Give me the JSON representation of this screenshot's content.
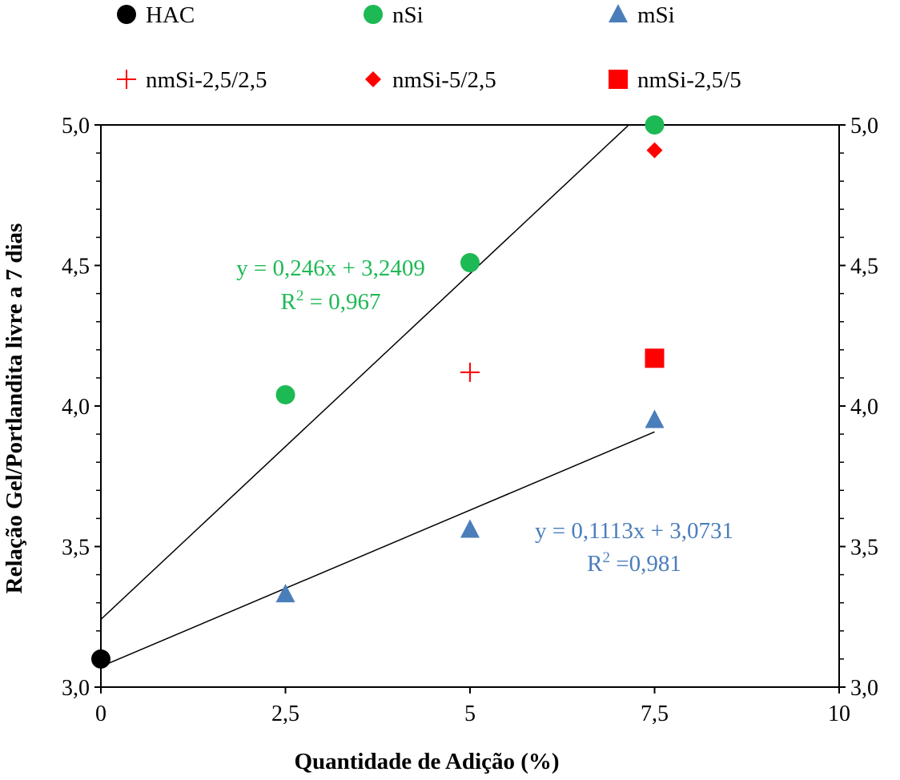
{
  "chart_data": {
    "type": "scatter",
    "title": "",
    "xlabel": "Quantidade de Adição (%)",
    "ylabel": "Relação Gel/Portlandita livre a 7 dias",
    "xlim": [
      0,
      10
    ],
    "ylim": [
      3.0,
      5.0
    ],
    "x_ticks": [
      0,
      2.5,
      5,
      7.5,
      10
    ],
    "x_tick_labels": [
      "0",
      "2,5",
      "5",
      "7,5",
      "10"
    ],
    "y_ticks": [
      3.0,
      3.5,
      4.0,
      4.5,
      5.0
    ],
    "y_tick_labels": [
      "3,0",
      "3,5",
      "4,0",
      "4,5",
      "5,0"
    ],
    "y2_tick_labels": [
      "3,0",
      "3,5",
      "4,0",
      "4,5",
      "5,0"
    ],
    "grid": false,
    "legend_position": "top",
    "series": [
      {
        "name": "HAC",
        "marker": "circle",
        "color": "#000000",
        "points": [
          [
            0,
            3.1
          ]
        ]
      },
      {
        "name": "nSi",
        "marker": "circle",
        "color": "#1db954",
        "points": [
          [
            2.5,
            4.04
          ],
          [
            5,
            4.51
          ],
          [
            7.5,
            5.0
          ]
        ]
      },
      {
        "name": "mSi",
        "marker": "triangle",
        "color": "#4a7ebb",
        "points": [
          [
            2.5,
            3.33
          ],
          [
            5,
            3.56
          ],
          [
            7.5,
            3.95
          ]
        ]
      },
      {
        "name": "nmSi-2,5/2,5",
        "marker": "plus",
        "color": "#ff0000",
        "points": [
          [
            5,
            4.12
          ]
        ]
      },
      {
        "name": "nmSi-5/2,5",
        "marker": "diamond",
        "color": "#ff0000",
        "points": [
          [
            7.5,
            4.91
          ]
        ]
      },
      {
        "name": "nmSi-2,5/5",
        "marker": "square",
        "color": "#ff0000",
        "points": [
          [
            7.5,
            4.17
          ]
        ]
      }
    ],
    "trendlines": [
      {
        "name": "nSi-fit",
        "slope": 0.246,
        "intercept": 3.2409,
        "x_range": [
          0,
          7.14
        ],
        "color": "#1db954",
        "equation": "y = 0,246x + 3,2409",
        "r2_prefix": "R",
        "r2_sup": "2",
        "r2_value": " = 0,967"
      },
      {
        "name": "mSi-fit",
        "slope": 0.1113,
        "intercept": 3.0731,
        "x_range": [
          0,
          7.5
        ],
        "color": "#4a7ebb",
        "equation": "y = 0,1113x + 3,0731",
        "r2_prefix": "R",
        "r2_sup": "2",
        "r2_value": " =0,981"
      }
    ]
  }
}
